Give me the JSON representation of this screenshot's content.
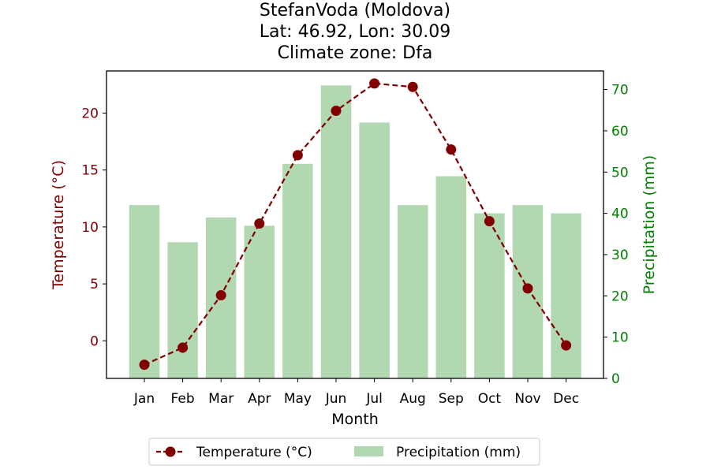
{
  "chart_data": {
    "type": "bar+line",
    "title_lines": [
      "StefanVoda (Moldova)",
      "Lat: 46.92, Lon: 30.09",
      "Climate zone: Dfa"
    ],
    "xlabel": "Month",
    "ylabel_left": "Temperature (°C)",
    "ylabel_right": "Precipitation (mm)",
    "categories": [
      "Jan",
      "Feb",
      "Mar",
      "Apr",
      "May",
      "Jun",
      "Jul",
      "Aug",
      "Sep",
      "Oct",
      "Nov",
      "Dec"
    ],
    "temperature": {
      "name": "Temperature (°C)",
      "color": "#800000",
      "values": [
        -2.1,
        -0.6,
        4.0,
        10.3,
        16.3,
        20.2,
        22.6,
        22.3,
        16.8,
        10.5,
        4.6,
        -0.4
      ]
    },
    "precipitation": {
      "name": "Precipitation (mm)",
      "color": "#b2d8b2",
      "values": [
        42,
        33,
        39,
        37,
        52,
        71,
        62,
        42,
        49,
        40,
        42,
        40
      ]
    },
    "ylim_left": [
      -3.3,
      23.7
    ],
    "yticks_left": [
      0,
      5,
      10,
      15,
      20
    ],
    "ylim_right": [
      0,
      74.5
    ],
    "yticks_right": [
      0,
      10,
      20,
      30,
      40,
      50,
      60,
      70
    ],
    "left_axis_color": "#800000",
    "right_axis_color": "#008000",
    "legend_position": "bottom-center"
  }
}
